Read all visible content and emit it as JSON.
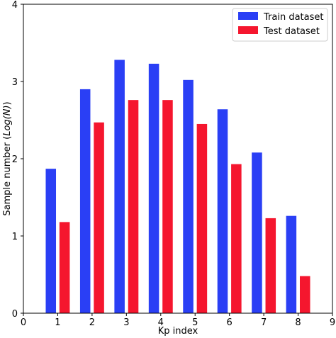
{
  "chart_data": {
    "type": "bar",
    "title": "",
    "xlabel": "Kp index",
    "ylabel_prefix": "Sample number (",
    "ylabel_italic": "Log(N)",
    "ylabel_suffix": ")",
    "xlim": [
      0,
      9
    ],
    "ylim": [
      0,
      4
    ],
    "xticks": [
      "0",
      "1",
      "2",
      "3",
      "4",
      "5",
      "6",
      "7",
      "8",
      "9"
    ],
    "yticks": [
      "0",
      "1",
      "2",
      "3",
      "4"
    ],
    "categories": [
      1,
      2,
      3,
      4,
      5,
      6,
      7,
      8
    ],
    "grid": false,
    "legend_position": "top-right",
    "series": [
      {
        "name": "Train dataset",
        "color": "#2a3ff5",
        "values": [
          1.87,
          2.9,
          3.28,
          3.23,
          3.02,
          2.64,
          2.08,
          1.26
        ]
      },
      {
        "name": "Test dataset",
        "color": "#f5162e",
        "values": [
          1.18,
          2.47,
          2.76,
          2.76,
          2.45,
          1.93,
          1.23,
          0.48
        ]
      }
    ]
  }
}
